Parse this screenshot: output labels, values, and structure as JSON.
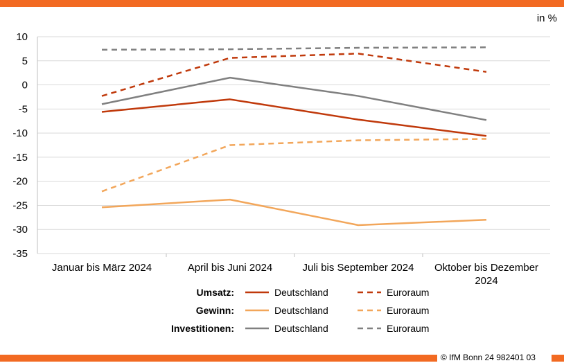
{
  "colors": {
    "bar": "#F26A22",
    "umsatz": "#C0390B",
    "gewinn": "#F2A65A",
    "investitionen": "#808080",
    "grid": "#D9D9D9"
  },
  "copyright": "© IfM Bonn 24 982401 03",
  "chart_data": {
    "type": "line",
    "unit_label": "in %",
    "categories": [
      [
        "Januar bis März 2024"
      ],
      [
        "April bis Juni 2024"
      ],
      [
        "Juli bis September 2024"
      ],
      [
        "Oktober bis Dezember",
        "2024"
      ]
    ],
    "ylim": [
      -35,
      10
    ],
    "yticks": [
      10,
      5,
      0,
      -5,
      -10,
      -15,
      -20,
      -25,
      -30,
      -35
    ],
    "grid": true,
    "legend_position": "bottom",
    "groups": [
      "Umsatz:",
      "Gewinn:",
      "Investitionen:"
    ],
    "series": [
      {
        "name": "Deutschland",
        "group": 0,
        "style": "solid",
        "color": "umsatz",
        "values": [
          -5.6,
          -3.0,
          -7.2,
          -10.6
        ]
      },
      {
        "name": "Euroraum",
        "group": 0,
        "style": "dashed",
        "color": "umsatz",
        "values": [
          -2.3,
          5.6,
          6.5,
          2.7
        ]
      },
      {
        "name": "Deutschland",
        "group": 1,
        "style": "solid",
        "color": "gewinn",
        "values": [
          -25.4,
          -23.8,
          -29.1,
          -28.0
        ]
      },
      {
        "name": "Euroraum",
        "group": 1,
        "style": "dashed",
        "color": "gewinn",
        "values": [
          -22.1,
          -12.5,
          -11.5,
          -11.2
        ]
      },
      {
        "name": "Deutschland",
        "group": 2,
        "style": "solid",
        "color": "investitionen",
        "values": [
          -4.0,
          1.5,
          -2.3,
          -7.3
        ]
      },
      {
        "name": "Euroraum",
        "group": 2,
        "style": "dashed",
        "color": "investitionen",
        "values": [
          7.3,
          7.4,
          7.7,
          7.8
        ]
      }
    ]
  }
}
